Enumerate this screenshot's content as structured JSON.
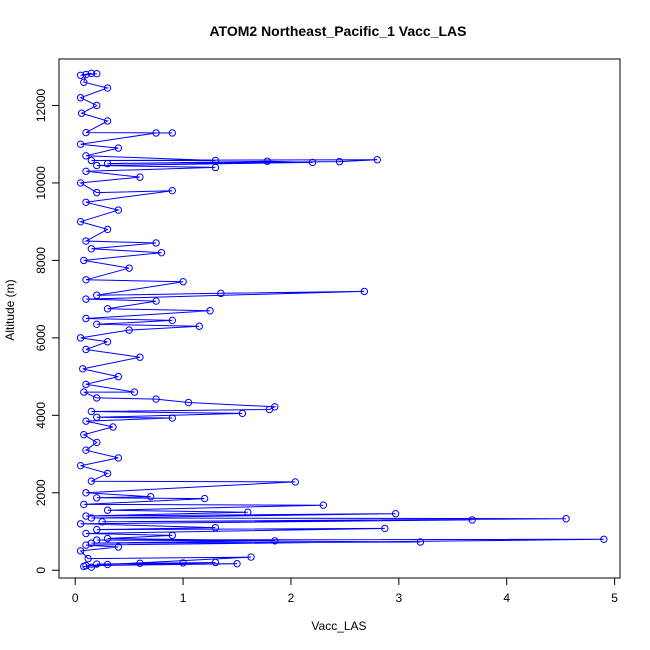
{
  "chart_data": {
    "type": "scatter",
    "title": "ATOM2 Northeast_Pacific_1 Vacc_LAS",
    "xlabel": "Vacc_LAS",
    "ylabel": "Altitude (m)",
    "xlim": [
      -0.15,
      5.05
    ],
    "ylim": [
      -200,
      13200
    ],
    "xticks": [
      0,
      1,
      2,
      3,
      4,
      5
    ],
    "yticks": [
      0,
      2000,
      4000,
      6000,
      8000,
      10000,
      12000
    ],
    "grid": false,
    "color": "#0000ff",
    "series": [
      {
        "name": "Vacc_LAS",
        "style": "points-and-lines",
        "points": [
          [
            0.08,
            100
          ],
          [
            0.15,
            80
          ],
          [
            0.3,
            150
          ],
          [
            0.6,
            180
          ],
          [
            1.0,
            190
          ],
          [
            1.3,
            200
          ],
          [
            0.2,
            160
          ],
          [
            1.5,
            170
          ],
          [
            0.1,
            120
          ],
          [
            1.63,
            340
          ],
          [
            0.12,
            300
          ],
          [
            0.05,
            500
          ],
          [
            0.4,
            600
          ],
          [
            0.1,
            650
          ],
          [
            4.9,
            800
          ],
          [
            0.2,
            780
          ],
          [
            3.2,
            730
          ],
          [
            0.15,
            700
          ],
          [
            1.85,
            760
          ],
          [
            0.3,
            820
          ],
          [
            0.9,
            900
          ],
          [
            0.1,
            950
          ],
          [
            2.87,
            1080
          ],
          [
            0.2,
            1050
          ],
          [
            1.3,
            1100
          ],
          [
            0.05,
            1200
          ],
          [
            3.68,
            1300
          ],
          [
            0.25,
            1250
          ],
          [
            4.55,
            1330
          ],
          [
            0.15,
            1350
          ],
          [
            2.97,
            1460
          ],
          [
            0.1,
            1400
          ],
          [
            1.6,
            1500
          ],
          [
            0.3,
            1550
          ],
          [
            2.3,
            1680
          ],
          [
            0.08,
            1700
          ],
          [
            1.2,
            1850
          ],
          [
            0.2,
            1870
          ],
          [
            0.7,
            1900
          ],
          [
            0.1,
            2000
          ],
          [
            2.04,
            2280
          ],
          [
            0.15,
            2300
          ],
          [
            0.3,
            2500
          ],
          [
            0.05,
            2700
          ],
          [
            0.4,
            2900
          ],
          [
            0.1,
            3100
          ],
          [
            0.2,
            3300
          ],
          [
            0.08,
            3500
          ],
          [
            0.35,
            3700
          ],
          [
            0.1,
            3850
          ],
          [
            0.9,
            3930
          ],
          [
            0.2,
            3950
          ],
          [
            1.55,
            4050
          ],
          [
            0.15,
            4100
          ],
          [
            1.8,
            4150
          ],
          [
            1.85,
            4220
          ],
          [
            1.05,
            4330
          ],
          [
            0.75,
            4420
          ],
          [
            0.2,
            4450
          ],
          [
            0.08,
            4600
          ],
          [
            0.55,
            4600
          ],
          [
            0.1,
            4800
          ],
          [
            0.4,
            5000
          ],
          [
            0.07,
            5200
          ],
          [
            0.6,
            5500
          ],
          [
            0.1,
            5700
          ],
          [
            0.3,
            5900
          ],
          [
            0.05,
            6000
          ],
          [
            0.5,
            6200
          ],
          [
            1.15,
            6300
          ],
          [
            0.2,
            6350
          ],
          [
            0.9,
            6450
          ],
          [
            0.1,
            6500
          ],
          [
            1.25,
            6700
          ],
          [
            0.3,
            6750
          ],
          [
            0.75,
            6950
          ],
          [
            0.1,
            7000
          ],
          [
            2.68,
            7200
          ],
          [
            1.35,
            7150
          ],
          [
            0.2,
            7100
          ],
          [
            1.0,
            7450
          ],
          [
            0.1,
            7500
          ],
          [
            0.5,
            7800
          ],
          [
            0.08,
            8000
          ],
          [
            0.8,
            8200
          ],
          [
            0.15,
            8300
          ],
          [
            0.75,
            8450
          ],
          [
            0.1,
            8500
          ],
          [
            0.3,
            8800
          ],
          [
            0.05,
            9000
          ],
          [
            0.4,
            9300
          ],
          [
            0.1,
            9500
          ],
          [
            0.9,
            9800
          ],
          [
            0.2,
            9750
          ],
          [
            0.05,
            10000
          ],
          [
            0.6,
            10150
          ],
          [
            0.1,
            10300
          ],
          [
            1.3,
            10400
          ],
          [
            0.2,
            10450
          ],
          [
            2.2,
            10530
          ],
          [
            1.78,
            10560
          ],
          [
            0.3,
            10500
          ],
          [
            2.45,
            10550
          ],
          [
            2.8,
            10600
          ],
          [
            0.15,
            10580
          ],
          [
            1.3,
            10580
          ],
          [
            0.1,
            10700
          ],
          [
            0.4,
            10900
          ],
          [
            0.05,
            11000
          ],
          [
            0.75,
            11290
          ],
          [
            0.9,
            11290
          ],
          [
            0.1,
            11300
          ],
          [
            0.3,
            11600
          ],
          [
            0.06,
            11800
          ],
          [
            0.2,
            12000
          ],
          [
            0.05,
            12200
          ],
          [
            0.3,
            12450
          ],
          [
            0.08,
            12600
          ],
          [
            0.1,
            12800
          ],
          [
            0.2,
            12820
          ],
          [
            0.05,
            12780
          ],
          [
            0.15,
            12830
          ]
        ]
      }
    ]
  }
}
